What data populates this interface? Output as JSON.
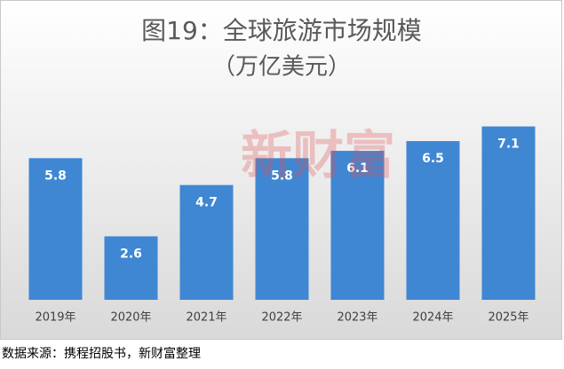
{
  "chart_data": {
    "type": "bar",
    "title": "图19：全球旅游市场规模",
    "subtitle": "（万亿美元）",
    "watermark": "新财富",
    "categories": [
      "2019年",
      "2020年",
      "2021年",
      "2022年",
      "2023年",
      "2024年",
      "2025年"
    ],
    "values": [
      5.8,
      2.6,
      4.7,
      5.8,
      6.1,
      6.5,
      7.1
    ],
    "color": "#3f87d3",
    "ylim": [
      0,
      8.5
    ]
  },
  "source": "数据来源：携程招股书，新财富整理"
}
